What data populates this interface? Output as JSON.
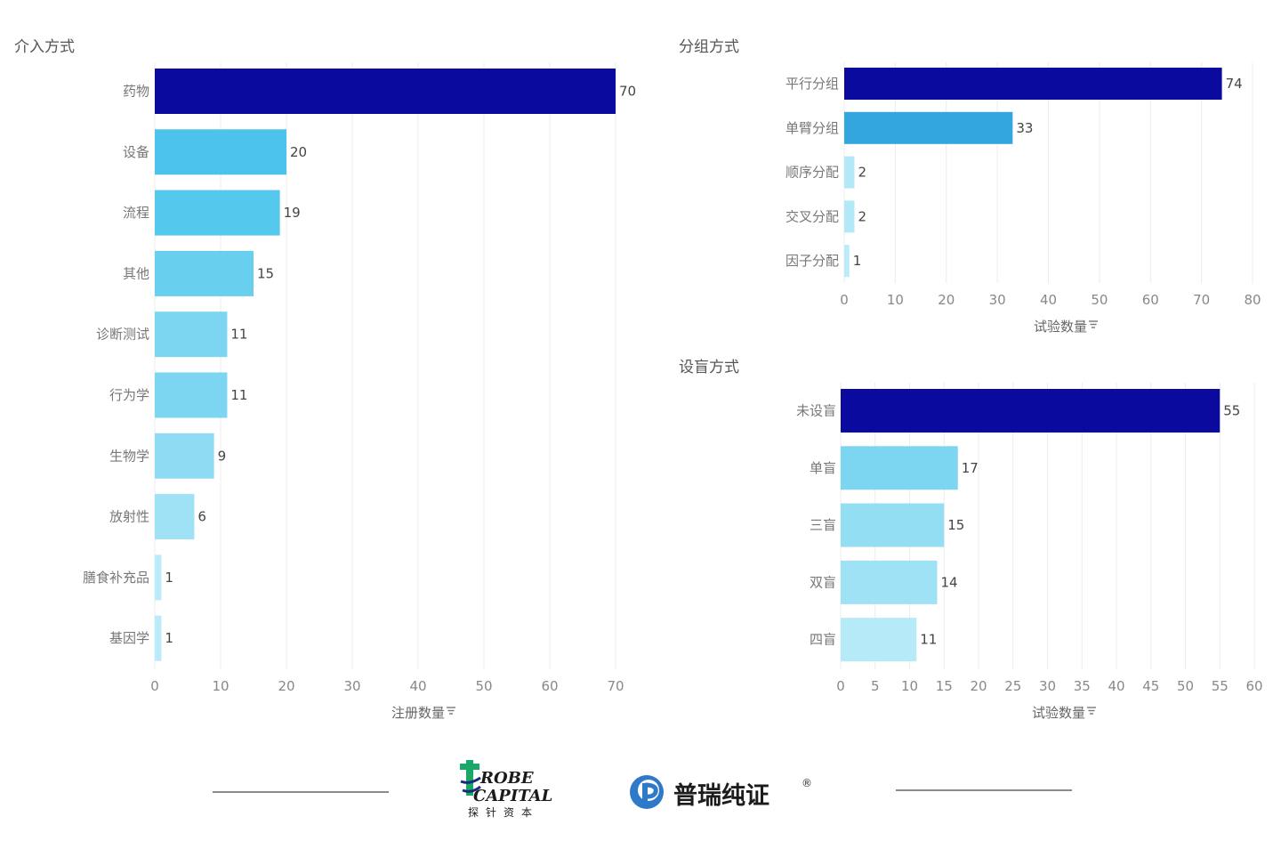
{
  "charts": {
    "intervention": {
      "title": "介入方式",
      "axis_title": "注册数量",
      "filter_icon": "filter-icon"
    },
    "grouping": {
      "title": "分组方式",
      "axis_title": "试验数量",
      "filter_icon": "filter-icon"
    },
    "blinding": {
      "title": "设盲方式",
      "axis_title": "试验数量",
      "filter_icon": "filter-icon"
    }
  },
  "chart_data": [
    {
      "type": "bar",
      "orientation": "horizontal",
      "title": "介入方式",
      "xlabel": "注册数量",
      "ylabel": "",
      "categories": [
        "药物",
        "设备",
        "流程",
        "其他",
        "诊断测试",
        "行为学",
        "生物学",
        "放射性",
        "膳食补充品",
        "基因学"
      ],
      "values": [
        70,
        20,
        19,
        15,
        11,
        11,
        9,
        6,
        1,
        1
      ],
      "colors": [
        "#0a0a9e",
        "#4cc3eb",
        "#55c8ee",
        "#68cfef",
        "#7dd6f1",
        "#7dd6f1",
        "#8edcf3",
        "#9fe2f5",
        "#b9ebf8",
        "#b9ebf8"
      ],
      "xlim": [
        0,
        70
      ],
      "xticks": [
        0,
        10,
        20,
        30,
        40,
        50,
        60,
        70
      ],
      "grid": "vertical"
    },
    {
      "type": "bar",
      "orientation": "horizontal",
      "title": "分组方式",
      "xlabel": "试验数量",
      "ylabel": "",
      "categories": [
        "平行分组",
        "单臂分组",
        "顺序分配",
        "交叉分配",
        "因子分配"
      ],
      "values": [
        74,
        33,
        2,
        2,
        1
      ],
      "colors": [
        "#0a0a9e",
        "#33a6e0",
        "#b3e9f7",
        "#b3e9f7",
        "#b9ebf8"
      ],
      "xlim": [
        0,
        80
      ],
      "xticks": [
        0,
        10,
        20,
        30,
        40,
        50,
        60,
        70,
        80
      ],
      "grid": "vertical"
    },
    {
      "type": "bar",
      "orientation": "horizontal",
      "title": "设盲方式",
      "xlabel": "试验数量",
      "ylabel": "",
      "categories": [
        "未设盲",
        "单盲",
        "三盲",
        "双盲",
        "四盲"
      ],
      "values": [
        55,
        17,
        15,
        14,
        11
      ],
      "colors": [
        "#0a0a9e",
        "#7dd6f1",
        "#93def3",
        "#9fe2f5",
        "#b6eaf8"
      ],
      "xlim": [
        0,
        60
      ],
      "xticks": [
        0,
        5,
        10,
        15,
        20,
        25,
        30,
        35,
        40,
        45,
        50,
        55,
        60
      ],
      "grid": "vertical"
    }
  ],
  "footer": {
    "logo1_line1": "ROBE",
    "logo1_line2": "CAPITAL",
    "logo1_cn": "探针资本",
    "logo2_text": "普瑞纯证",
    "logo2_reg": "®"
  }
}
